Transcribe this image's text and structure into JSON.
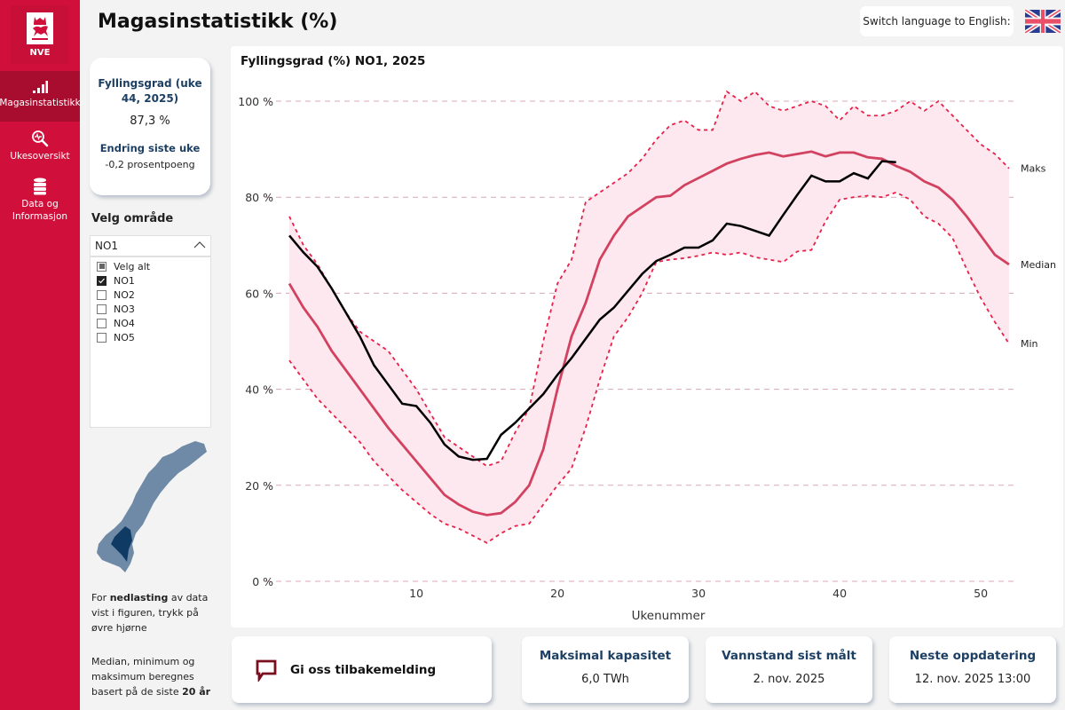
{
  "sidebar": {
    "logo_text": "NVE",
    "items": [
      {
        "label": "Magasinstatistikk",
        "icon": "bar-chart-icon",
        "active": true
      },
      {
        "label": "Ukesoversikt",
        "icon": "search-pulse-icon",
        "active": false
      },
      {
        "label": "Data og Informasjon",
        "icon": "database-icon",
        "active": false
      }
    ]
  },
  "header": {
    "title": "Magasinstatistikk (%)",
    "language_button": "Switch language to English:",
    "flag_icon": "uk-flag-icon"
  },
  "kpi": {
    "title": "Fyllingsgrad (uke 44, 2025)",
    "value": "87,3 %",
    "change_title": "Endring siste uke",
    "change_value": "-0,2 prosentpoeng"
  },
  "area_selector": {
    "label": "Velg område",
    "selected": "NO1",
    "options": [
      {
        "label": "Velg alt",
        "state": "partial"
      },
      {
        "label": "NO1",
        "state": "checked"
      },
      {
        "label": "NO2",
        "state": "unchecked"
      },
      {
        "label": "NO3",
        "state": "unchecked"
      },
      {
        "label": "NO4",
        "state": "unchecked"
      },
      {
        "label": "NO5",
        "state": "unchecked"
      }
    ]
  },
  "notes": {
    "download_prefix": "For ",
    "download_bold": "nedlasting",
    "download_suffix": " av data vist i figuren, trykk på øvre hjørne",
    "basis_prefix": "Median, minimum og maksimum beregnes basert på de siste ",
    "basis_bold": "20 år"
  },
  "colors": {
    "brand_red": "#d0103a",
    "median": "#d2415f",
    "band": "#fce8ee",
    "minmax": "#e8204a",
    "current": "#000000",
    "title_blue": "#1c3f63"
  },
  "bottom": {
    "feedback_label": "Gi oss tilbakemelding",
    "cards": [
      {
        "title": "Maksimal kapasitet",
        "value": "6,0 TWh"
      },
      {
        "title": "Vannstand sist målt",
        "value": "2. nov. 2025"
      },
      {
        "title": "Neste oppdatering",
        "value": "12. nov. 2025 13:00"
      }
    ]
  },
  "chart_data": {
    "type": "line",
    "title": "Fyllingsgrad (%) NO1, 2025",
    "xlabel": "Ukenummer",
    "ylabel": "",
    "xlim": [
      1,
      52
    ],
    "ylim": [
      0,
      100
    ],
    "x_ticks": [
      10,
      20,
      30,
      40,
      50
    ],
    "y_ticks": [
      0,
      20,
      40,
      60,
      80,
      100
    ],
    "y_tick_labels": [
      "0 %",
      "20 %",
      "40 %",
      "60 %",
      "80 %",
      "100 %"
    ],
    "grid": "horizontal-dashed",
    "series_labels": {
      "max": "Maks",
      "median": "Median",
      "min": "Min"
    },
    "series": [
      {
        "name": "Maks",
        "style": "dashed",
        "x": [
          1,
          2,
          3,
          4,
          5,
          6,
          7,
          8,
          9,
          10,
          11,
          12,
          13,
          14,
          15,
          16,
          17,
          18,
          19,
          20,
          21,
          22,
          23,
          24,
          25,
          26,
          27,
          28,
          29,
          30,
          31,
          32,
          33,
          34,
          35,
          36,
          37,
          38,
          39,
          40,
          41,
          42,
          43,
          44,
          45,
          46,
          47,
          48,
          49,
          50,
          51,
          52
        ],
        "values": [
          76,
          70,
          66,
          61,
          56,
          52,
          50,
          48,
          44,
          40,
          35,
          30,
          28,
          26,
          24,
          25,
          31,
          36,
          50,
          62,
          67,
          79,
          81,
          83,
          85,
          88,
          92,
          95,
          96,
          94,
          94,
          102,
          100,
          102,
          99,
          98,
          99,
          100,
          99,
          96,
          99,
          97,
          97,
          98,
          100,
          98,
          100,
          97,
          94,
          91,
          89,
          86
        ]
      },
      {
        "name": "Median",
        "style": "solid",
        "x": [
          1,
          2,
          3,
          4,
          5,
          6,
          7,
          8,
          9,
          10,
          11,
          12,
          13,
          14,
          15,
          16,
          17,
          18,
          19,
          20,
          21,
          22,
          23,
          24,
          25,
          26,
          27,
          28,
          29,
          30,
          31,
          32,
          33,
          34,
          35,
          36,
          37,
          38,
          39,
          40,
          41,
          42,
          43,
          44,
          45,
          46,
          47,
          48,
          49,
          50,
          51,
          52
        ],
        "values": [
          62,
          57,
          53,
          48,
          44,
          40,
          36,
          32,
          28.5,
          25,
          21.5,
          18,
          16,
          14.5,
          13.8,
          14.2,
          16.5,
          20,
          27.5,
          40,
          51,
          58,
          67,
          72,
          76,
          78,
          80,
          80.3,
          82.5,
          84,
          85.5,
          87,
          88,
          88.8,
          89.3,
          88.5,
          89,
          89.5,
          88.5,
          89.3,
          89.3,
          88.3,
          88,
          86.5,
          85.3,
          83.3,
          82,
          79.5,
          76,
          72,
          68,
          66
        ]
      },
      {
        "name": "Min",
        "style": "dashed",
        "x": [
          1,
          2,
          3,
          4,
          5,
          6,
          7,
          8,
          9,
          10,
          11,
          12,
          13,
          14,
          15,
          16,
          17,
          18,
          19,
          20,
          21,
          22,
          23,
          24,
          25,
          26,
          27,
          28,
          29,
          30,
          31,
          32,
          33,
          34,
          35,
          36,
          37,
          38,
          39,
          40,
          41,
          42,
          43,
          44,
          45,
          46,
          47,
          48,
          49,
          50,
          51,
          52
        ],
        "values": [
          46,
          42,
          38,
          35,
          32,
          29,
          25,
          22,
          19,
          16.5,
          14,
          12,
          11,
          9.5,
          8,
          10,
          11.5,
          12,
          16,
          20,
          23.5,
          32,
          42,
          51,
          55,
          60,
          66.5,
          67,
          67.3,
          67.8,
          68.5,
          68,
          68.5,
          67.5,
          67,
          66.5,
          68.7,
          69,
          75,
          79.5,
          80,
          80.3,
          80,
          81,
          79.5,
          76,
          74.5,
          71.5,
          65,
          59,
          54,
          49.5
        ]
      },
      {
        "name": "2025",
        "style": "solid-black",
        "x": [
          1,
          2,
          3,
          4,
          5,
          6,
          7,
          8,
          9,
          10,
          11,
          12,
          13,
          14,
          15,
          16,
          17,
          18,
          19,
          20,
          21,
          22,
          23,
          24,
          25,
          26,
          27,
          28,
          29,
          30,
          31,
          32,
          33,
          34,
          35,
          36,
          37,
          38,
          39,
          40,
          41,
          42,
          43,
          44
        ],
        "values": [
          72,
          68.5,
          65.5,
          61,
          56,
          51,
          45,
          41,
          37,
          36.5,
          33,
          28.5,
          26,
          25.3,
          25.5,
          30.5,
          33,
          36,
          39,
          43,
          46.5,
          50.5,
          54.5,
          57,
          60.5,
          64,
          66.7,
          68,
          69.5,
          69.5,
          71,
          74.5,
          74,
          73,
          72,
          76.3,
          80.5,
          84.5,
          83.3,
          83.3,
          85,
          83.9,
          87.5,
          87.3
        ]
      }
    ]
  }
}
